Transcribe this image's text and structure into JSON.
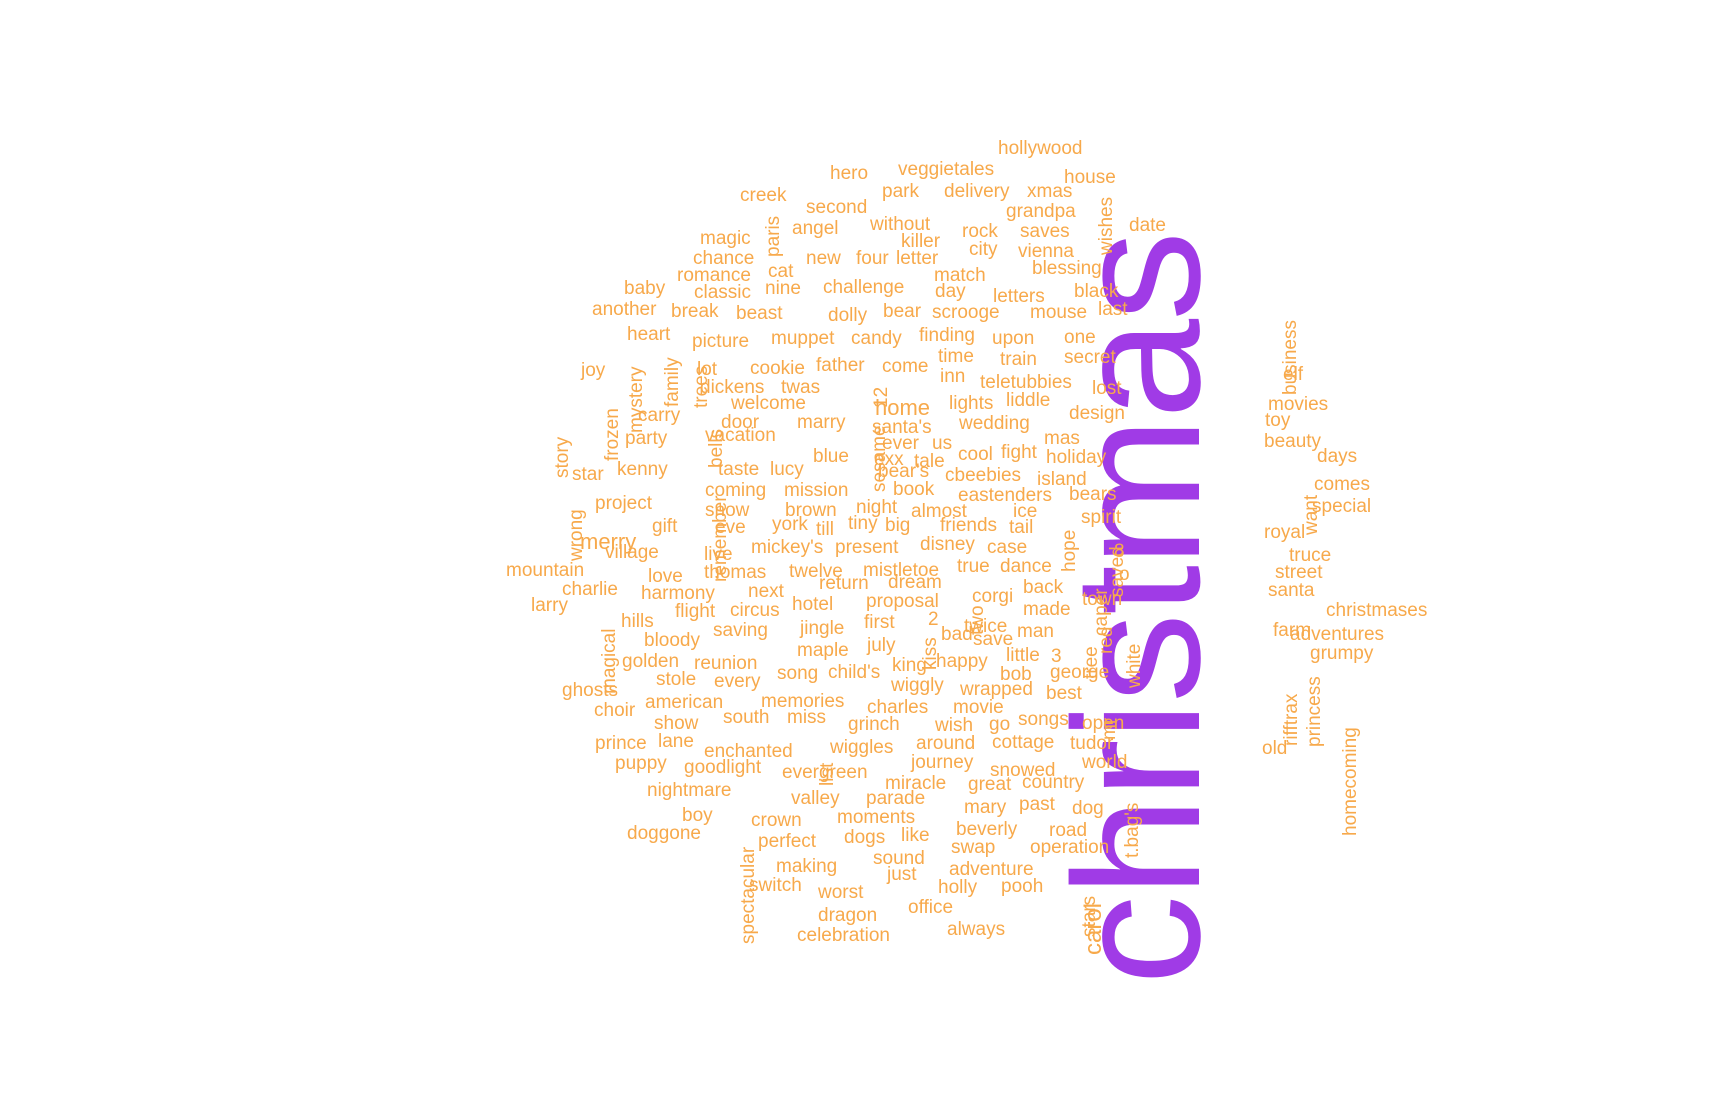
{
  "colors": {
    "word": "#F7A94B",
    "top_word": "#A03BE6",
    "background": "#FFFFFF"
  },
  "chart_data": {
    "type": "wordcloud",
    "title": "",
    "words": [
      {
        "text": "christmas",
        "weight": 100
      },
      {
        "text": "carol",
        "weight": 10
      },
      {
        "text": "merry",
        "weight": 9
      },
      {
        "text": "home",
        "weight": 9
      },
      {
        "text": "story",
        "weight": 8
      },
      {
        "text": "hollywood",
        "weight": 8
      },
      {
        "text": "hero",
        "weight": 8
      },
      {
        "text": "veggietales",
        "weight": 8
      },
      {
        "text": "house",
        "weight": 8
      },
      {
        "text": "creek",
        "weight": 8
      },
      {
        "text": "park",
        "weight": 8
      },
      {
        "text": "delivery",
        "weight": 8
      },
      {
        "text": "xmas",
        "weight": 8
      },
      {
        "text": "second",
        "weight": 8
      },
      {
        "text": "grandpa",
        "weight": 8
      },
      {
        "text": "wishes",
        "weight": 8
      },
      {
        "text": "paris",
        "weight": 8
      },
      {
        "text": "without",
        "weight": 8
      },
      {
        "text": "date",
        "weight": 8
      },
      {
        "text": "magic",
        "weight": 8
      },
      {
        "text": "angel",
        "weight": 8
      },
      {
        "text": "rock",
        "weight": 8
      },
      {
        "text": "saves",
        "weight": 8
      },
      {
        "text": "killer",
        "weight": 8
      },
      {
        "text": "city",
        "weight": 8
      },
      {
        "text": "vienna",
        "weight": 8
      },
      {
        "text": "chance",
        "weight": 8
      },
      {
        "text": "new",
        "weight": 8
      },
      {
        "text": "four",
        "weight": 8
      },
      {
        "text": "letter",
        "weight": 8
      },
      {
        "text": "blessing",
        "weight": 8
      },
      {
        "text": "romance",
        "weight": 8
      },
      {
        "text": "cat",
        "weight": 8
      },
      {
        "text": "match",
        "weight": 8
      },
      {
        "text": "baby",
        "weight": 8
      },
      {
        "text": "classic",
        "weight": 8
      },
      {
        "text": "nine",
        "weight": 8
      },
      {
        "text": "challenge",
        "weight": 8
      },
      {
        "text": "day",
        "weight": 8
      },
      {
        "text": "letters",
        "weight": 8
      },
      {
        "text": "black",
        "weight": 8
      },
      {
        "text": "another",
        "weight": 8
      },
      {
        "text": "break",
        "weight": 8
      },
      {
        "text": "beast",
        "weight": 8
      },
      {
        "text": "dolly",
        "weight": 8
      },
      {
        "text": "bear",
        "weight": 8
      },
      {
        "text": "scrooge",
        "weight": 8
      },
      {
        "text": "mouse",
        "weight": 8
      },
      {
        "text": "last",
        "weight": 8
      },
      {
        "text": "business",
        "weight": 8
      },
      {
        "text": "heart",
        "weight": 8
      },
      {
        "text": "picture",
        "weight": 8
      },
      {
        "text": "muppet",
        "weight": 8
      },
      {
        "text": "candy",
        "weight": 8
      },
      {
        "text": "finding",
        "weight": 8
      },
      {
        "text": "upon",
        "weight": 8
      },
      {
        "text": "one",
        "weight": 8
      },
      {
        "text": "elf",
        "weight": 8
      },
      {
        "text": "joy",
        "weight": 8
      },
      {
        "text": "mystery",
        "weight": 8
      },
      {
        "text": "family",
        "weight": 8
      },
      {
        "text": "trees",
        "weight": 8
      },
      {
        "text": "lot",
        "weight": 8
      },
      {
        "text": "cookie",
        "weight": 8
      },
      {
        "text": "father",
        "weight": 8
      },
      {
        "text": "come",
        "weight": 8
      },
      {
        "text": "time",
        "weight": 8
      },
      {
        "text": "train",
        "weight": 8
      },
      {
        "text": "secret",
        "weight": 8
      },
      {
        "text": "inn",
        "weight": 8
      },
      {
        "text": "teletubbies",
        "weight": 8
      },
      {
        "text": "lost",
        "weight": 8
      },
      {
        "text": "dickens",
        "weight": 8
      },
      {
        "text": "twas",
        "weight": 8
      },
      {
        "text": "12",
        "weight": 8
      },
      {
        "text": "liddle",
        "weight": 8
      },
      {
        "text": "movies",
        "weight": 8
      },
      {
        "text": "frozen",
        "weight": 8
      },
      {
        "text": "carry",
        "weight": 8
      },
      {
        "text": "welcome",
        "weight": 8
      },
      {
        "text": "lights",
        "weight": 8
      },
      {
        "text": "santa's",
        "weight": 8
      },
      {
        "text": "design",
        "weight": 8
      },
      {
        "text": "toy",
        "weight": 8
      },
      {
        "text": "bells",
        "weight": 8
      },
      {
        "text": "door",
        "weight": 8
      },
      {
        "text": "marry",
        "weight": 8
      },
      {
        "text": "ever",
        "weight": 8
      },
      {
        "text": "us",
        "weight": 8
      },
      {
        "text": "wedding",
        "weight": 8
      },
      {
        "text": "mas",
        "weight": 8
      },
      {
        "text": "beauty",
        "weight": 8
      },
      {
        "text": "party",
        "weight": 8
      },
      {
        "text": "vacation",
        "weight": 8
      },
      {
        "text": "sesame",
        "weight": 8
      },
      {
        "text": "exx",
        "weight": 8
      },
      {
        "text": "tale",
        "weight": 8
      },
      {
        "text": "cool",
        "weight": 8
      },
      {
        "text": "fight",
        "weight": 8
      },
      {
        "text": "holiday",
        "weight": 8
      },
      {
        "text": "days",
        "weight": 8
      },
      {
        "text": "star",
        "weight": 8
      },
      {
        "text": "kenny",
        "weight": 8
      },
      {
        "text": "taste",
        "weight": 8
      },
      {
        "text": "lucy",
        "weight": 8
      },
      {
        "text": "blue",
        "weight": 8
      },
      {
        "text": "bear's",
        "weight": 8
      },
      {
        "text": "cbeebies",
        "weight": 8
      },
      {
        "text": "island",
        "weight": 8
      },
      {
        "text": "comes",
        "weight": 8
      },
      {
        "text": "want",
        "weight": 8
      },
      {
        "text": "coming",
        "weight": 8
      },
      {
        "text": "mission",
        "weight": 8
      },
      {
        "text": "book",
        "weight": 8
      },
      {
        "text": "eastenders",
        "weight": 8
      },
      {
        "text": "bears",
        "weight": 8
      },
      {
        "text": "special",
        "weight": 8
      },
      {
        "text": "wrong",
        "weight": 8
      },
      {
        "text": "project",
        "weight": 8
      },
      {
        "text": "remember",
        "weight": 8
      },
      {
        "text": "snow",
        "weight": 8
      },
      {
        "text": "brown",
        "weight": 8
      },
      {
        "text": "night",
        "weight": 8
      },
      {
        "text": "almost",
        "weight": 8
      },
      {
        "text": "ice",
        "weight": 8
      },
      {
        "text": "spirit",
        "weight": 8
      },
      {
        "text": "gift",
        "weight": 8
      },
      {
        "text": "eve",
        "weight": 8
      },
      {
        "text": "york",
        "weight": 8
      },
      {
        "text": "till",
        "weight": 8
      },
      {
        "text": "tiny",
        "weight": 8
      },
      {
        "text": "big",
        "weight": 8
      },
      {
        "text": "friends",
        "weight": 8
      },
      {
        "text": "tail",
        "weight": 8
      },
      {
        "text": "hope",
        "weight": 8
      },
      {
        "text": "royal",
        "weight": 8
      },
      {
        "text": "village",
        "weight": 8
      },
      {
        "text": "live",
        "weight": 8
      },
      {
        "text": "mickey's",
        "weight": 8
      },
      {
        "text": "present",
        "weight": 8
      },
      {
        "text": "disney",
        "weight": 8
      },
      {
        "text": "case",
        "weight": 8
      },
      {
        "text": "saved",
        "weight": 8
      },
      {
        "text": "8",
        "weight": 8
      },
      {
        "text": "truce",
        "weight": 8
      },
      {
        "text": "mountain",
        "weight": 8
      },
      {
        "text": "love",
        "weight": 8
      },
      {
        "text": "thomas",
        "weight": 8
      },
      {
        "text": "twelve",
        "weight": 8
      },
      {
        "text": "mistletoe",
        "weight": 8
      },
      {
        "text": "true",
        "weight": 8
      },
      {
        "text": "dance",
        "weight": 8
      },
      {
        "text": "caper",
        "weight": 8
      },
      {
        "text": "o",
        "weight": 8
      },
      {
        "text": "street",
        "weight": 8
      },
      {
        "text": "charlie",
        "weight": 8
      },
      {
        "text": "harmony",
        "weight": 8
      },
      {
        "text": "return",
        "weight": 8
      },
      {
        "text": "dream",
        "weight": 8
      },
      {
        "text": "two",
        "weight": 8
      },
      {
        "text": "back",
        "weight": 8
      },
      {
        "text": "santa",
        "weight": 8
      },
      {
        "text": "next",
        "weight": 8
      },
      {
        "text": "proposal",
        "weight": 8
      },
      {
        "text": "corgi",
        "weight": 8
      },
      {
        "text": "town",
        "weight": 8
      },
      {
        "text": "larry",
        "weight": 8
      },
      {
        "text": "hotel",
        "weight": 8
      },
      {
        "text": "flight",
        "weight": 8
      },
      {
        "text": "circus",
        "weight": 8
      },
      {
        "text": "made",
        "weight": 8
      },
      {
        "text": "christmases",
        "weight": 8
      },
      {
        "text": "hills",
        "weight": 8
      },
      {
        "text": "magical",
        "weight": 8
      },
      {
        "text": "first",
        "weight": 8
      },
      {
        "text": "2",
        "weight": 8
      },
      {
        "text": "twice",
        "weight": 8
      },
      {
        "text": "red",
        "weight": 8
      },
      {
        "text": "farm",
        "weight": 8
      },
      {
        "text": "saving",
        "weight": 8
      },
      {
        "text": "jingle",
        "weight": 8
      },
      {
        "text": "kiss",
        "weight": 8
      },
      {
        "text": "bad",
        "weight": 8
      },
      {
        "text": "man",
        "weight": 8
      },
      {
        "text": "tree",
        "weight": 8
      },
      {
        "text": "white",
        "weight": 8
      },
      {
        "text": "adventures",
        "weight": 8
      },
      {
        "text": "bloody",
        "weight": 8
      },
      {
        "text": "july",
        "weight": 8
      },
      {
        "text": "save",
        "weight": 8
      },
      {
        "text": "3",
        "weight": 8
      },
      {
        "text": "grumpy",
        "weight": 8
      },
      {
        "text": "golden",
        "weight": 8
      },
      {
        "text": "maple",
        "weight": 8
      },
      {
        "text": "little",
        "weight": 8
      },
      {
        "text": "reunion",
        "weight": 8
      },
      {
        "text": "king",
        "weight": 8
      },
      {
        "text": "happy",
        "weight": 8
      },
      {
        "text": "bob",
        "weight": 8
      },
      {
        "text": "george",
        "weight": 8
      },
      {
        "text": "rifftrax",
        "weight": 8
      },
      {
        "text": "princess",
        "weight": 8
      },
      {
        "text": "ghosts",
        "weight": 8
      },
      {
        "text": "stole",
        "weight": 8
      },
      {
        "text": "every",
        "weight": 8
      },
      {
        "text": "song",
        "weight": 8
      },
      {
        "text": "child's",
        "weight": 8
      },
      {
        "text": "wiggly",
        "weight": 8
      },
      {
        "text": "wrapped",
        "weight": 8
      },
      {
        "text": "best",
        "weight": 8
      },
      {
        "text": "mr",
        "weight": 8
      },
      {
        "text": "homecoming",
        "weight": 8
      },
      {
        "text": "choir",
        "weight": 8
      },
      {
        "text": "american",
        "weight": 8
      },
      {
        "text": "memories",
        "weight": 8
      },
      {
        "text": "charles",
        "weight": 8
      },
      {
        "text": "movie",
        "weight": 8
      },
      {
        "text": "songs",
        "weight": 8
      },
      {
        "text": "show",
        "weight": 8
      },
      {
        "text": "south",
        "weight": 8
      },
      {
        "text": "miss",
        "weight": 8
      },
      {
        "text": "grinch",
        "weight": 8
      },
      {
        "text": "wish",
        "weight": 8
      },
      {
        "text": "go",
        "weight": 8
      },
      {
        "text": "open",
        "weight": 8
      },
      {
        "text": "prince",
        "weight": 8
      },
      {
        "text": "lane",
        "weight": 8
      },
      {
        "text": "list",
        "weight": 8
      },
      {
        "text": "enchanted",
        "weight": 8
      },
      {
        "text": "wiggles",
        "weight": 8
      },
      {
        "text": "around",
        "weight": 8
      },
      {
        "text": "cottage",
        "weight": 8
      },
      {
        "text": "tudor",
        "weight": 8
      },
      {
        "text": "old",
        "weight": 8
      },
      {
        "text": "puppy",
        "weight": 8
      },
      {
        "text": "goodlight",
        "weight": 8
      },
      {
        "text": "evergreen",
        "weight": 8
      },
      {
        "text": "journey",
        "weight": 8
      },
      {
        "text": "snowed",
        "weight": 8
      },
      {
        "text": "world",
        "weight": 8
      },
      {
        "text": "miracle",
        "weight": 8
      },
      {
        "text": "great",
        "weight": 8
      },
      {
        "text": "country",
        "weight": 8
      },
      {
        "text": "t.bag's",
        "weight": 8
      },
      {
        "text": "nightmare",
        "weight": 8
      },
      {
        "text": "valley",
        "weight": 8
      },
      {
        "text": "parade",
        "weight": 8
      },
      {
        "text": "mary",
        "weight": 8
      },
      {
        "text": "past",
        "weight": 8
      },
      {
        "text": "dog",
        "weight": 8
      },
      {
        "text": "boy",
        "weight": 8
      },
      {
        "text": "crown",
        "weight": 8
      },
      {
        "text": "moments",
        "weight": 8
      },
      {
        "text": "beverly",
        "weight": 8
      },
      {
        "text": "road",
        "weight": 8
      },
      {
        "text": "doggone",
        "weight": 8
      },
      {
        "text": "spectacular",
        "weight": 8
      },
      {
        "text": "perfect",
        "weight": 8
      },
      {
        "text": "dogs",
        "weight": 8
      },
      {
        "text": "like",
        "weight": 8
      },
      {
        "text": "swap",
        "weight": 8
      },
      {
        "text": "operation",
        "weight": 8
      },
      {
        "text": "making",
        "weight": 8
      },
      {
        "text": "sound",
        "weight": 8
      },
      {
        "text": "adventure",
        "weight": 8
      },
      {
        "text": "stars",
        "weight": 8
      },
      {
        "text": "just",
        "weight": 8
      },
      {
        "text": "switch",
        "weight": 8
      },
      {
        "text": "worst",
        "weight": 8
      },
      {
        "text": "holly",
        "weight": 8
      },
      {
        "text": "pooh",
        "weight": 8
      },
      {
        "text": "office",
        "weight": 8
      },
      {
        "text": "dragon",
        "weight": 8
      },
      {
        "text": "always",
        "weight": 8
      },
      {
        "text": "celebration",
        "weight": 8
      }
    ]
  }
}
